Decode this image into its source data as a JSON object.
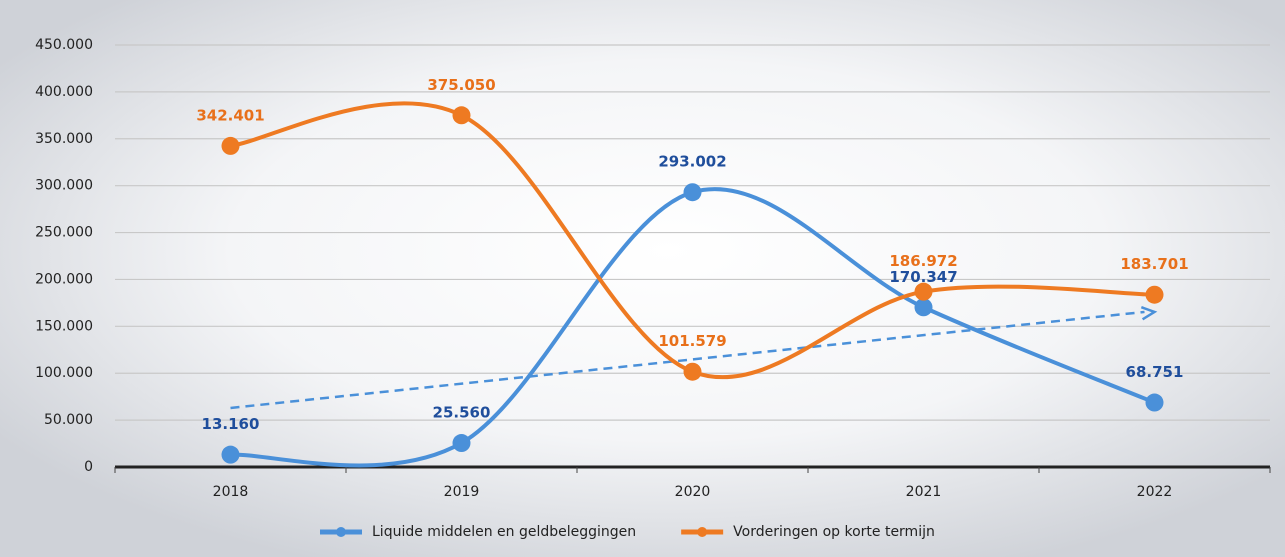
{
  "chart_data": {
    "type": "line",
    "categories": [
      "2018",
      "2019",
      "2020",
      "2021",
      "2022"
    ],
    "series": [
      {
        "name": "Liquide middelen en geldbeleggingen",
        "color": "#4a90d9",
        "label_color": "#1f4e9c",
        "values": [
          13160,
          25560,
          293002,
          170347,
          68751
        ],
        "value_labels": [
          "13.160",
          "25.560",
          "293.002",
          "170.347",
          "68.751"
        ],
        "trendline": true
      },
      {
        "name": "Vorderingen op korte termijn",
        "color": "#ee7a22",
        "label_color": "#e8701a",
        "values": [
          342401,
          375050,
          101579,
          186972,
          183701
        ],
        "value_labels": [
          "342.401",
          "375.050",
          "101.579",
          "186.972",
          "183.701"
        ]
      }
    ],
    "ylim": [
      0,
      450000
    ],
    "yticks": [
      0,
      {
        "value": 50000,
        "label": "50.000"
      },
      {
        "value": 100000,
        "label": "100.000"
      },
      {
        "value": 150000,
        "label": "150.000"
      },
      {
        "value": 200000,
        "label": "200.000"
      },
      {
        "value": 250000,
        "label": "250.000"
      },
      {
        "value": 300000,
        "label": "300.000"
      },
      {
        "value": 350000,
        "label": "350.000"
      },
      {
        "value": 400000,
        "label": "400.000"
      },
      {
        "value": 450000,
        "label": "450.000"
      }
    ],
    "grid": true,
    "smooth": true,
    "legend": "bottom"
  }
}
